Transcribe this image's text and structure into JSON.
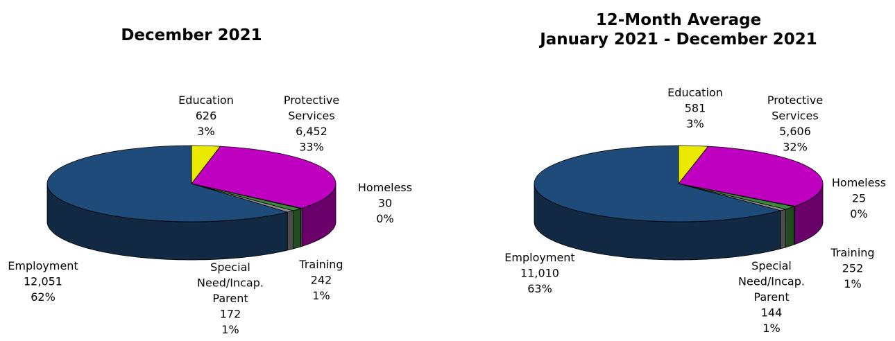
{
  "chart_data": [
    {
      "type": "pie",
      "title": "December 2021",
      "subtitle": "",
      "unit": "",
      "slices": [
        {
          "name": "Education",
          "value": 626,
          "percent": "3%",
          "value_label": "626",
          "color": "#eaea00"
        },
        {
          "name": "Protective Services",
          "value": 6452,
          "percent": "33%",
          "value_label": "6,452",
          "color": "#c000c0"
        },
        {
          "name": "Homeless",
          "value": 30,
          "percent": "0%",
          "value_label": "30",
          "color": "#d8ecd8"
        },
        {
          "name": "Training",
          "value": 242,
          "percent": "1%",
          "value_label": "242",
          "color": "#3a8a3a"
        },
        {
          "name": "Special Need/Incap. Parent",
          "value": 172,
          "percent": "1%",
          "value_label": "172",
          "color": "#8c8c8c"
        },
        {
          "name": "Employment",
          "value": 12051,
          "percent": "62%",
          "value_label": "12,051",
          "color": "#1f4b7a"
        }
      ]
    },
    {
      "type": "pie",
      "title": "12-Month Average",
      "subtitle": "January 2021 - December 2021",
      "unit": "",
      "slices": [
        {
          "name": "Education",
          "value": 581,
          "percent": "3%",
          "value_label": "581",
          "color": "#eaea00"
        },
        {
          "name": "Protective Services",
          "value": 5606,
          "percent": "32%",
          "value_label": "5,606",
          "color": "#c000c0"
        },
        {
          "name": "Homeless",
          "value": 25,
          "percent": "0%",
          "value_label": "25",
          "color": "#d8ecd8"
        },
        {
          "name": "Training",
          "value": 252,
          "percent": "1%",
          "value_label": "252",
          "color": "#3a8a3a"
        },
        {
          "name": "Special Need/Incap. Parent",
          "value": 144,
          "percent": "1%",
          "value_label": "144",
          "color": "#8c8c8c"
        },
        {
          "name": "Employment",
          "value": 11010,
          "percent": "63%",
          "value_label": "11,010",
          "color": "#1f4b7a"
        }
      ]
    }
  ]
}
